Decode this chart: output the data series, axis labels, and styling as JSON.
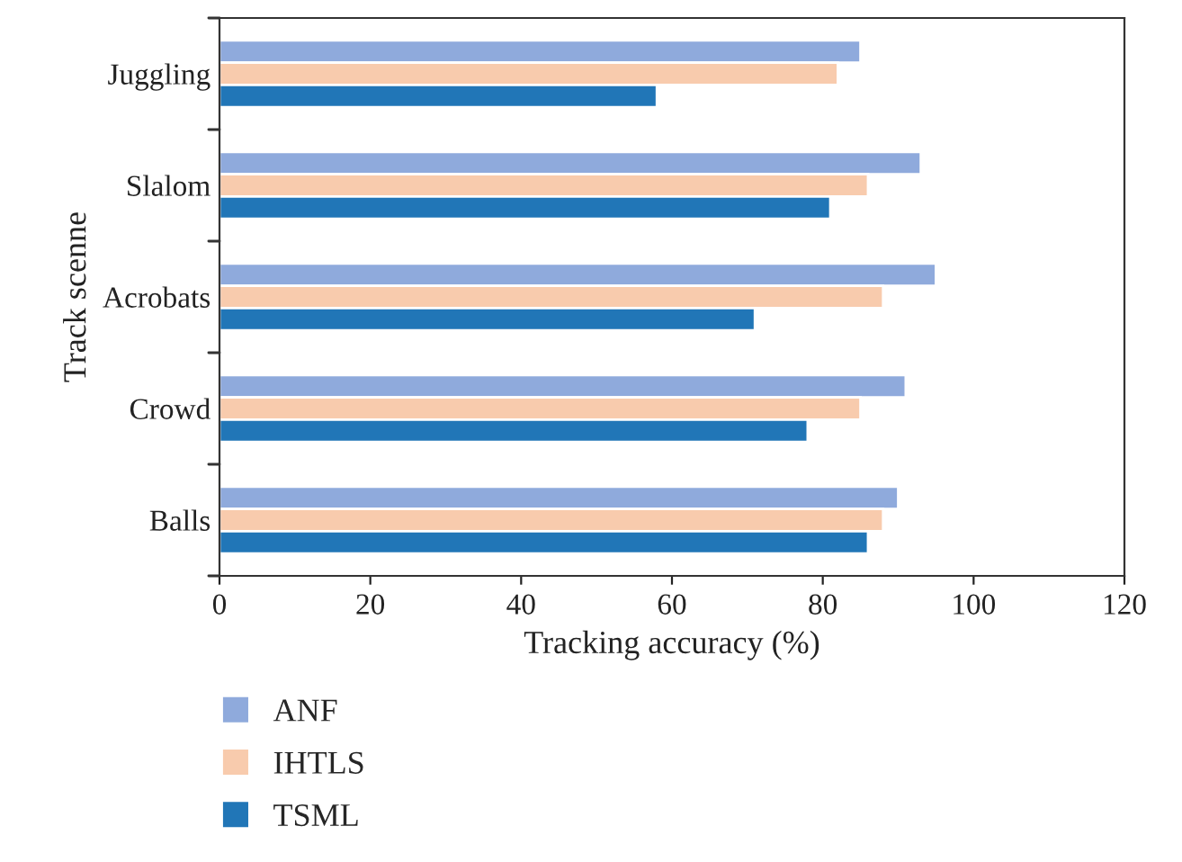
{
  "chart_data": {
    "type": "bar",
    "orientation": "horizontal",
    "xlabel": "Tracking accuracy (%)",
    "ylabel": "Track scenne",
    "categories": [
      "Juggling",
      "Slalom",
      "Acrobats",
      "Crowd",
      "Balls"
    ],
    "series": [
      {
        "name": "ANF",
        "color": "#8faadc",
        "values": [
          85,
          93,
          95,
          91,
          90
        ]
      },
      {
        "name": "IHTLS",
        "color": "#f8cbad",
        "values": [
          82,
          86,
          88,
          85,
          88
        ]
      },
      {
        "name": "TSML",
        "color": "#2176b7",
        "values": [
          58,
          81,
          71,
          78,
          86
        ]
      }
    ],
    "xlim": [
      0,
      120
    ],
    "xticks": [
      0,
      20,
      40,
      60,
      80,
      100,
      120
    ],
    "grid": false,
    "legend": "bottom left"
  }
}
